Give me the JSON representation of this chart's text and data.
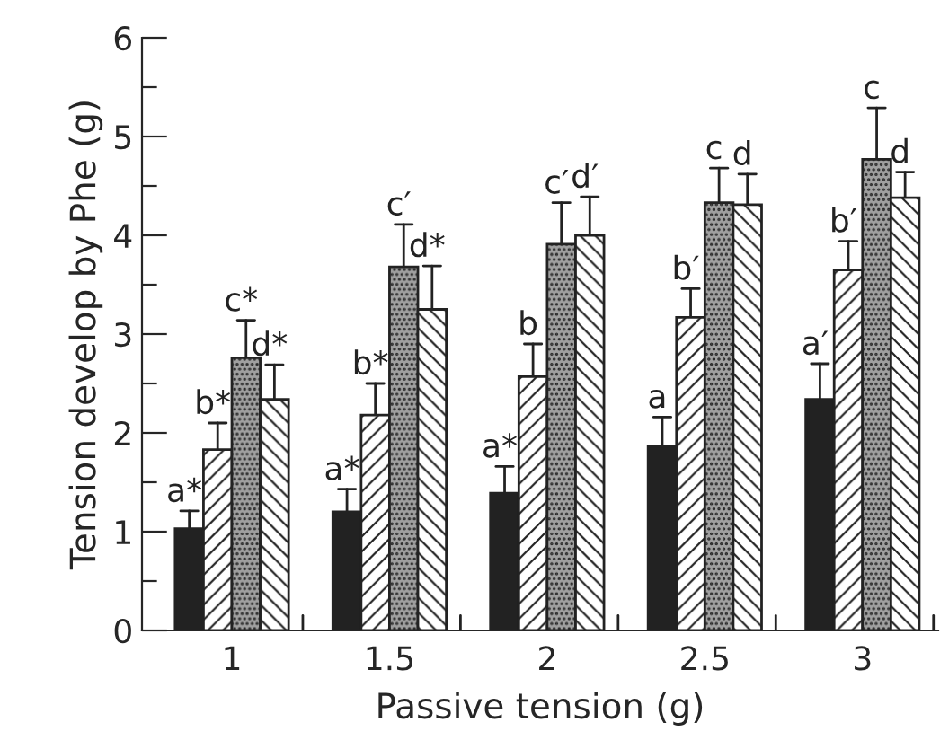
{
  "chart_data": {
    "type": "bar",
    "xlabel": "Passive tension (g)",
    "ylabel": "Tension develop by Phe (g)",
    "categories": [
      "1",
      "1.5",
      "2",
      "2.5",
      "3"
    ],
    "series": [
      {
        "color": "#222222",
        "values": [
          1.03,
          1.2,
          1.39,
          1.86,
          2.34
        ],
        "errors": [
          [
            1.03,
            1.21
          ],
          [
            1.2,
            1.43
          ],
          [
            1.39,
            1.66
          ],
          [
            1.86,
            2.16
          ],
          [
            2.34,
            2.7
          ]
        ]
      },
      {
        "color": "#ffffff",
        "values": [
          1.83,
          2.18,
          2.57,
          3.17,
          3.65
        ],
        "errors": [
          [
            1.83,
            2.1
          ],
          [
            2.18,
            2.5
          ],
          [
            2.57,
            2.9
          ],
          [
            3.17,
            3.46
          ],
          [
            3.65,
            3.94
          ]
        ]
      },
      {
        "color": "#a0a0a0",
        "values": [
          2.76,
          3.68,
          3.91,
          4.33,
          4.77
        ],
        "errors": [
          [
            2.76,
            3.14
          ],
          [
            3.68,
            4.11
          ],
          [
            3.91,
            4.33
          ],
          [
            4.33,
            4.68
          ],
          [
            4.77,
            5.29
          ]
        ]
      },
      {
        "color": "#ffffff",
        "values": [
          2.34,
          3.25,
          4.0,
          4.31,
          4.38
        ],
        "errors": [
          [
            2.34,
            2.69
          ],
          [
            3.25,
            3.69
          ],
          [
            4.0,
            4.39
          ],
          [
            4.31,
            4.62
          ],
          [
            4.38,
            4.64
          ]
        ]
      }
    ],
    "ylim": [
      0,
      6
    ],
    "yticks": [
      0,
      {
        "value": 0.5,
        "label": null
      },
      1,
      {
        "value": 1.5,
        "label": null
      },
      2,
      {
        "value": 2.5,
        "label": null
      },
      3,
      {
        "value": 3.5,
        "label": null
      },
      4,
      {
        "value": 4.5,
        "label": null
      },
      5,
      {
        "value": 5.5,
        "label": null
      },
      6
    ],
    "grid": false,
    "legend": false,
    "annotations": [
      {
        "text": "a*",
        "x": "1",
        "y": 1.03
      },
      {
        "text": "b*",
        "x": "1",
        "y": 1.83
      },
      {
        "text": "c*",
        "x": "1",
        "y": 2.76
      },
      {
        "text": "d*",
        "x": "1",
        "y": 2.34
      },
      {
        "text": "a*",
        "x": "1.5",
        "y": 1.2
      },
      {
        "text": "b*",
        "x": "1.5",
        "y": 2.18
      },
      {
        "text": "c′",
        "x": "1.5",
        "y": 3.68
      },
      {
        "text": "d*",
        "x": "1.5",
        "y": 3.25
      },
      {
        "text": "a*",
        "x": "2",
        "y": 1.39
      },
      {
        "text": "b",
        "x": "2",
        "y": 2.57
      },
      {
        "text": "c′",
        "x": "2",
        "y": 3.91
      },
      {
        "text": "d′",
        "x": "2",
        "y": 4.0
      },
      {
        "text": "a",
        "x": "2.5",
        "y": 1.86
      },
      {
        "text": "b′",
        "x": "2.5",
        "y": 3.17
      },
      {
        "text": "c",
        "x": "2.5",
        "y": 4.33
      },
      {
        "text": "d",
        "x": "2.5",
        "y": 4.31
      },
      {
        "text": "a′",
        "x": "3",
        "y": 2.34
      },
      {
        "text": "b′",
        "x": "3",
        "y": 3.65
      },
      {
        "text": "c",
        "x": "3",
        "y": 4.77
      },
      {
        "text": "d",
        "x": "3",
        "y": 4.38
      }
    ]
  }
}
